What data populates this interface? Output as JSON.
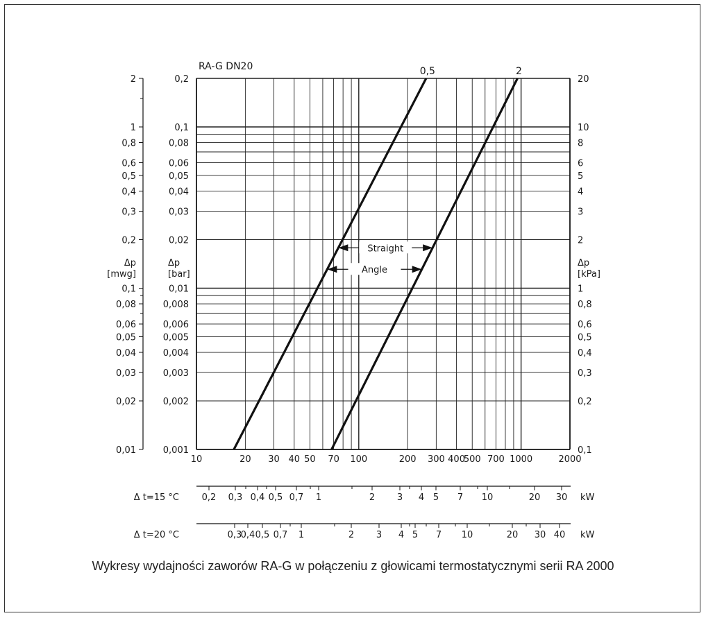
{
  "caption": "Wykresy wydajności zaworów RA-G w połączeniu z głowicami termostatycznymi serii RA 2000",
  "chart_data": {
    "type": "line",
    "title": "RA-G DN20",
    "x_scale": "log",
    "y_scale": "log",
    "xlim": [
      10,
      2000
    ],
    "ylim_bar": [
      0.001,
      0.2
    ],
    "grid": true,
    "x_ticks": [
      "10",
      "20",
      "30",
      "40",
      "50",
      "70",
      "100",
      "200",
      "300",
      "400",
      "500",
      "700",
      "1000",
      "2000"
    ],
    "y_ticks_mwg": [
      "2",
      "1",
      "0,8",
      "0,6",
      "0,5",
      "0,4",
      "0,3",
      "0,2",
      "0,1",
      "0,08",
      "0,06",
      "0,05",
      "0,04",
      "0,03",
      "0,02",
      "0,01"
    ],
    "y_ticks_bar": [
      "0,2",
      "0,1",
      "0,08",
      "0,06",
      "0,05",
      "0,04",
      "0,03",
      "0,02",
      "0,01",
      "0,008",
      "0,006",
      "0,005",
      "0,004",
      "0,003",
      "0,002",
      "0,001"
    ],
    "y_ticks_kpa": [
      "20",
      "10",
      "8",
      "6",
      "5",
      "4",
      "3",
      "2",
      "1",
      "0,8",
      "0,6",
      "0,5",
      "0,4",
      "0,3",
      "0,2",
      "0,1"
    ],
    "left_axis_label": [
      "Δp",
      "[mwg]"
    ],
    "bar_axis_label": [
      "Δp",
      "[bar]"
    ],
    "right_axis_label": [
      "Δp",
      "[kPa]"
    ],
    "series": [
      {
        "name": "0,5",
        "x": [
          17,
          260
        ],
        "y_bar": [
          0.001,
          0.2
        ]
      },
      {
        "name": "2",
        "x": [
          68,
          950
        ],
        "y_bar": [
          0.001,
          0.2
        ]
      }
    ],
    "annotations": {
      "straight": "Straight",
      "angle": "Angle"
    },
    "power_scales": [
      {
        "label": "Δ t=15 °C",
        "unit": "kW",
        "ticks": [
          "0,2",
          "0,3",
          "0,4",
          "0,5",
          "0,7",
          "1",
          "2",
          "3",
          "4",
          "5",
          "7",
          "10",
          "20",
          "30"
        ]
      },
      {
        "label": "Δ t=20 °C",
        "unit": "kW",
        "ticks": [
          "0,3",
          "0,4",
          "0,5",
          "0,7",
          "1",
          "2",
          "3",
          "4",
          "5",
          "7",
          "10",
          "20",
          "30",
          "40"
        ]
      }
    ]
  }
}
